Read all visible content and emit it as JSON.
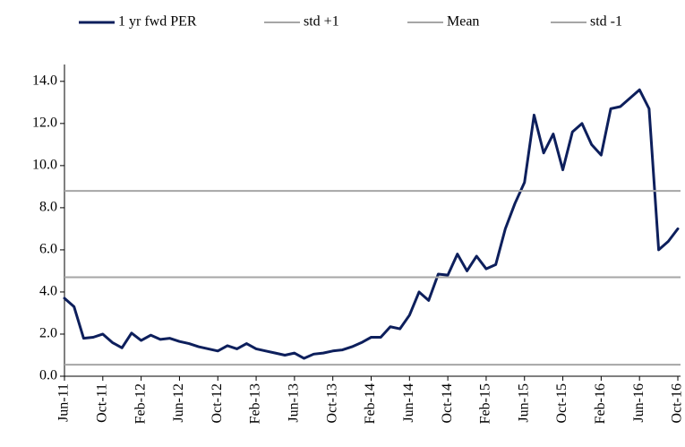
{
  "chart_data": {
    "type": "line",
    "categories": [
      "Jun-11",
      null,
      null,
      null,
      "Oct-11",
      null,
      null,
      null,
      "Feb-12",
      null,
      null,
      null,
      "Jun-12",
      null,
      null,
      null,
      "Oct-12",
      null,
      null,
      null,
      "Feb-13",
      null,
      null,
      null,
      "Jun-13",
      null,
      null,
      null,
      "Oct-13",
      null,
      null,
      null,
      "Feb-14",
      null,
      null,
      null,
      "Jun-14",
      null,
      null,
      null,
      "Oct-14",
      null,
      null,
      null,
      "Feb-15",
      null,
      null,
      null,
      "Jun-15",
      null,
      null,
      null,
      "Oct-15",
      null,
      null,
      null,
      "Feb-16",
      null,
      null,
      null,
      "Jun-16",
      null,
      null,
      null,
      "Oct-16"
    ],
    "series": [
      {
        "name": "1 yr fwd PER",
        "color": "#0d1f5c",
        "values": [
          3.7,
          3.3,
          1.8,
          1.85,
          2.0,
          1.6,
          1.35,
          2.05,
          1.7,
          1.95,
          1.75,
          1.8,
          1.65,
          1.55,
          1.4,
          1.3,
          1.2,
          1.45,
          1.3,
          1.55,
          1.3,
          1.2,
          1.1,
          1.0,
          1.1,
          0.85,
          1.05,
          1.1,
          1.2,
          1.25,
          1.4,
          1.6,
          1.85,
          1.85,
          2.35,
          2.25,
          2.9,
          4.0,
          3.6,
          4.85,
          4.8,
          5.8,
          5.0,
          5.7,
          5.1,
          5.3,
          7.0,
          8.2,
          9.2,
          12.4,
          10.6,
          11.5,
          9.8,
          11.6,
          12.0,
          11.0,
          10.5,
          12.7,
          12.8,
          13.2,
          13.6,
          12.7,
          6.0,
          6.4,
          7.0
        ]
      },
      {
        "name": "std +1",
        "color": "#a6a6a6",
        "value": 8.8
      },
      {
        "name": "Mean",
        "color": "#a6a6a6",
        "value": 4.7
      },
      {
        "name": "std -1",
        "color": "#a6a6a6",
        "value": 0.55
      }
    ],
    "ylim": [
      0,
      14.8
    ],
    "yticks": [
      {
        "value": 0,
        "label": "0.0"
      },
      {
        "value": 2,
        "label": "2.0"
      },
      {
        "value": 4,
        "label": "4.0"
      },
      {
        "value": 6,
        "label": "6.0"
      },
      {
        "value": 8,
        "label": "8.0"
      },
      {
        "value": 10,
        "label": "10.0"
      },
      {
        "value": 12,
        "label": "12.0"
      },
      {
        "value": 14,
        "label": "14.0"
      }
    ],
    "grid": false,
    "legend": "top"
  }
}
